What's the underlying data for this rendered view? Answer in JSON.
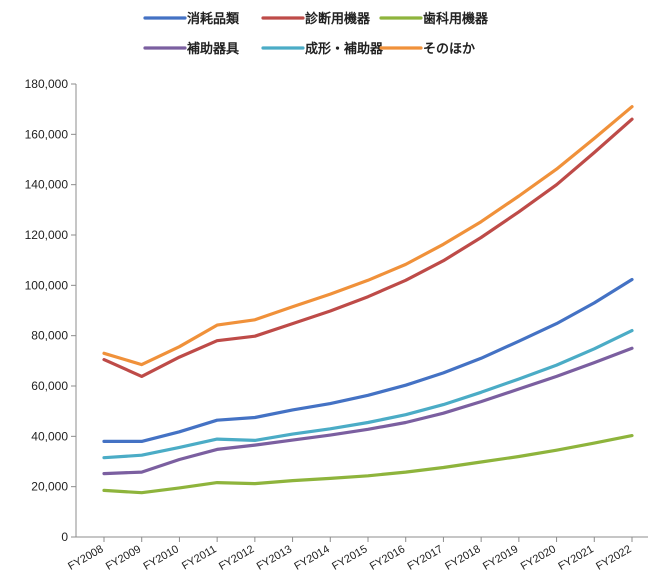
{
  "chart_data": {
    "type": "line",
    "title": "",
    "xlabel": "",
    "ylabel": "",
    "categories": [
      "FY2008",
      "FY2009",
      "FY2010",
      "FY2011",
      "FY2012",
      "FY2013",
      "FY2014",
      "FY2015",
      "FY2016",
      "FY2017",
      "FY2018",
      "FY2019",
      "FY2020",
      "FY2021",
      "FY2022"
    ],
    "ylim": [
      0,
      180000
    ],
    "yticks": [
      0,
      20000,
      40000,
      60000,
      80000,
      100000,
      120000,
      140000,
      160000,
      180000
    ],
    "ytick_labels": [
      "0",
      "20,000",
      "40,000",
      "60,000",
      "80,000",
      "100,000",
      "120,000",
      "140,000",
      "160,000",
      "180,000"
    ],
    "grid": false,
    "legend_position": "top",
    "series": [
      {
        "name": "消耗品類",
        "color": "#4472C4",
        "values": [
          38000,
          38000,
          41800,
          46400,
          47500,
          50500,
          53000,
          56300,
          60300,
          65200,
          71000,
          77800,
          84800,
          93000,
          102300
        ]
      },
      {
        "name": "診断用機器",
        "color": "#BE4B48",
        "values": [
          70500,
          63800,
          71500,
          78000,
          79800,
          84800,
          89800,
          95500,
          102000,
          109800,
          119000,
          129200,
          140000,
          152800,
          166000
        ]
      },
      {
        "name": "歯科用機器",
        "color": "#8EB43C",
        "values": [
          18500,
          17600,
          19500,
          21600,
          21200,
          22400,
          23300,
          24300,
          25800,
          27600,
          29800,
          32000,
          34500,
          37300,
          40300
        ]
      },
      {
        "name": "補助器具",
        "color": "#7B5FA0",
        "values": [
          25200,
          25800,
          30800,
          34800,
          36500,
          38500,
          40500,
          42800,
          45500,
          49200,
          53800,
          58800,
          63800,
          69300,
          75000
        ]
      },
      {
        "name": "成形・補助器",
        "color": "#4BACC6",
        "values": [
          31500,
          32500,
          35600,
          38900,
          38400,
          40900,
          43000,
          45500,
          48600,
          52600,
          57500,
          62800,
          68300,
          74800,
          82000
        ]
      },
      {
        "name": "そのほか",
        "color": "#F0913A",
        "values": [
          73000,
          68500,
          75600,
          84200,
          86300,
          91500,
          96500,
          102000,
          108300,
          116300,
          125300,
          135500,
          146200,
          158400,
          171000
        ]
      }
    ]
  }
}
